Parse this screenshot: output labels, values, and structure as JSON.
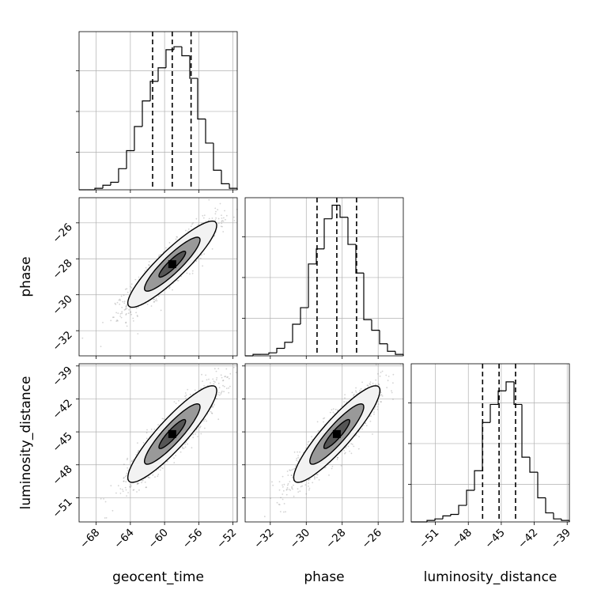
{
  "chart_data": {
    "type": "corner",
    "parameters": [
      "geocent_time",
      "phase",
      "luminosity_distance"
    ],
    "axis_labels": {
      "geocent_time": "geocent_time",
      "phase": "phase",
      "luminosity_distance": "luminosity_distance"
    },
    "ranges": {
      "geocent_time": [
        -70,
        -51.5
      ],
      "phase": [
        -33.4,
        -24.6
      ],
      "luminosity_distance": [
        -53.2,
        -38.8
      ]
    },
    "ticks": {
      "geocent_time": [
        -68,
        -64,
        -60,
        -56,
        -52
      ],
      "phase": [
        -32,
        -30,
        -28,
        -26
      ],
      "luminosity_distance": [
        -51,
        -48,
        -45,
        -42,
        -39
      ]
    },
    "tick_labels": {
      "geocent_time": [
        "−68",
        "−64",
        "−60",
        "−56",
        "−52"
      ],
      "phase": [
        "−32",
        "−30",
        "−28",
        "−26"
      ],
      "luminosity_distance": [
        "−51",
        "−48",
        "−45",
        "−42",
        "−39"
      ]
    },
    "quantiles": {
      "geocent_time": [
        -61.4,
        -59.1,
        -56.9
      ],
      "phase": [
        -29.4,
        -28.3,
        -27.2
      ],
      "luminosity_distance": [
        -46.7,
        -45.2,
        -43.7
      ]
    },
    "histograms": {
      "geocent_time": {
        "edges": [
          -70,
          -69.08,
          -68.15,
          -67.22,
          -66.3,
          -65.38,
          -64.45,
          -63.53,
          -62.6,
          -61.67,
          -60.75,
          -59.83,
          -58.9,
          -57.98,
          -57.05,
          -56.13,
          -55.2,
          -54.28,
          -53.35,
          -52.42,
          -51.5
        ],
        "counts": [
          0.0,
          0.0,
          0.01,
          0.03,
          0.05,
          0.14,
          0.26,
          0.42,
          0.59,
          0.72,
          0.81,
          0.93,
          0.95,
          0.89,
          0.74,
          0.47,
          0.31,
          0.13,
          0.04,
          0.01
        ]
      },
      "phase": {
        "edges": [
          -33.4,
          -32.96,
          -32.52,
          -32.08,
          -31.64,
          -31.2,
          -30.76,
          -30.32,
          -29.88,
          -29.44,
          -29.0,
          -28.56,
          -28.12,
          -27.68,
          -27.24,
          -26.8,
          -26.36,
          -25.92,
          -25.48,
          -25.04,
          -24.6
        ],
        "counts": [
          0.0,
          0.01,
          0.01,
          0.02,
          0.05,
          0.09,
          0.21,
          0.32,
          0.61,
          0.71,
          0.91,
          1.0,
          0.92,
          0.74,
          0.55,
          0.24,
          0.17,
          0.08,
          0.03,
          0.01
        ]
      },
      "luminosity_distance": {
        "edges": [
          -53.2,
          -52.48,
          -51.76,
          -51.04,
          -50.32,
          -49.6,
          -48.88,
          -48.16,
          -47.44,
          -46.72,
          -46.0,
          -45.28,
          -44.56,
          -43.84,
          -43.12,
          -42.4,
          -41.68,
          -40.96,
          -40.24,
          -39.52,
          -38.8
        ],
        "counts": [
          0.0,
          0.0,
          0.01,
          0.02,
          0.04,
          0.05,
          0.11,
          0.21,
          0.34,
          0.66,
          0.78,
          0.87,
          0.93,
          0.78,
          0.43,
          0.33,
          0.16,
          0.06,
          0.02,
          0.01
        ]
      }
    },
    "density_2d": {
      "phase_vs_geocent_time": {
        "center": [
          -59.1,
          -28.3
        ],
        "sigma": [
          2.6,
          1.2
        ],
        "correlation": 0.9
      },
      "luminosity_distance_vs_geocent_time": {
        "center": [
          -59.1,
          -45.2
        ],
        "sigma": [
          2.6,
          2.2
        ],
        "correlation": 0.9
      },
      "luminosity_distance_vs_phase": {
        "center": [
          -28.3,
          -45.2
        ],
        "sigma": [
          1.2,
          2.2
        ],
        "correlation": 0.9
      }
    },
    "grid": true,
    "colors": {
      "line": "#000000",
      "grid": "#b0b0b0",
      "points": "#808080",
      "contour_fill_outer": "#f2f2f2",
      "contour_fill_mid": "#999999",
      "contour_fill_inner": "#555555",
      "peak": "#000000"
    }
  }
}
